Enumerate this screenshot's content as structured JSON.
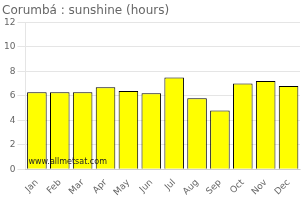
{
  "chart_data": {
    "type": "bar",
    "title": "Corumbá : sunshine (hours)",
    "categories": [
      "Jan",
      "Feb",
      "Mar",
      "Apr",
      "May",
      "Jun",
      "Jul",
      "Aug",
      "Sep",
      "Oct",
      "Nov",
      "Dec"
    ],
    "values": [
      6.3,
      6.3,
      6.3,
      6.7,
      6.4,
      6.2,
      7.5,
      5.8,
      4.8,
      7.0,
      7.2,
      6.8
    ],
    "color": "#FFFF00",
    "ylim": [
      0,
      12
    ],
    "yticks": [
      0,
      2,
      4,
      6,
      8,
      10,
      12
    ],
    "grid": true,
    "annotation": "www.allmetsat.com"
  }
}
